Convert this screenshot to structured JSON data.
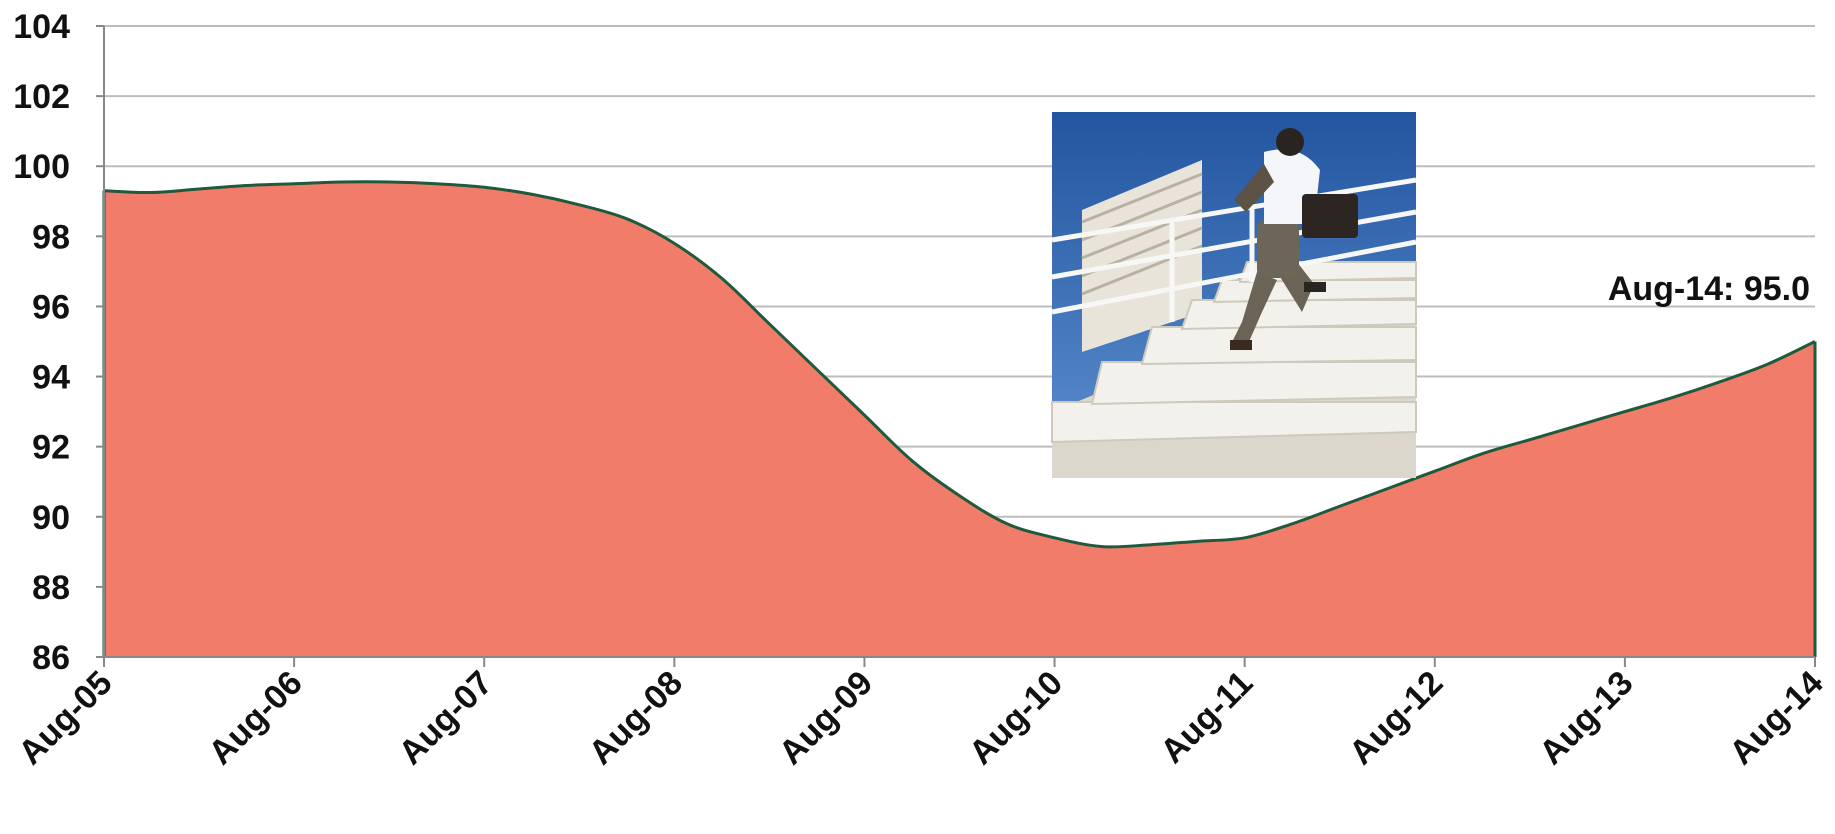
{
  "chart_data": {
    "type": "area",
    "title": "",
    "xlabel": "",
    "ylabel": "",
    "ylim": [
      86,
      104
    ],
    "yticks": [
      86,
      88,
      90,
      92,
      94,
      96,
      98,
      100,
      102,
      104
    ],
    "xtick_labels": [
      "Aug-05",
      "Aug-06",
      "Aug-07",
      "Aug-08",
      "Aug-09",
      "Aug-10",
      "Aug-11",
      "Aug-12",
      "Aug-13",
      "Aug-14"
    ],
    "grid": true,
    "legend": "none",
    "series": [
      {
        "fill_color": "#f27c6a",
        "line_color": "#1e5a3c",
        "x": [
          0,
          0.25,
          0.5,
          0.75,
          1.0,
          1.25,
          1.5,
          1.75,
          2.0,
          2.25,
          2.5,
          2.75,
          3.0,
          3.25,
          3.5,
          3.75,
          4.0,
          4.25,
          4.5,
          4.75,
          5.0,
          5.25,
          5.5,
          5.75,
          6.0,
          6.25,
          6.5,
          6.75,
          7.0,
          7.25,
          7.5,
          7.75,
          8.0,
          8.25,
          8.5,
          8.75,
          9.0
        ],
        "values": [
          99.3,
          99.25,
          99.35,
          99.45,
          99.5,
          99.55,
          99.55,
          99.5,
          99.4,
          99.2,
          98.9,
          98.5,
          97.8,
          96.8,
          95.5,
          94.2,
          92.9,
          91.6,
          90.6,
          89.8,
          89.4,
          89.15,
          89.2,
          89.3,
          89.4,
          89.8,
          90.3,
          90.8,
          91.3,
          91.8,
          92.2,
          92.6,
          93.0,
          93.4,
          93.85,
          94.35,
          95.0
        ]
      }
    ],
    "annotation": {
      "text": "Aug-14: 95.0",
      "x_index": 9,
      "value": 95.0
    }
  },
  "colors": {
    "fill": "#f27c6a",
    "line": "#1e5a3c",
    "grid": "#bdbdbd",
    "axis": "#888888",
    "text": "#111111"
  },
  "photo": {
    "subject": "businessman-climbing-stairs-icon"
  }
}
